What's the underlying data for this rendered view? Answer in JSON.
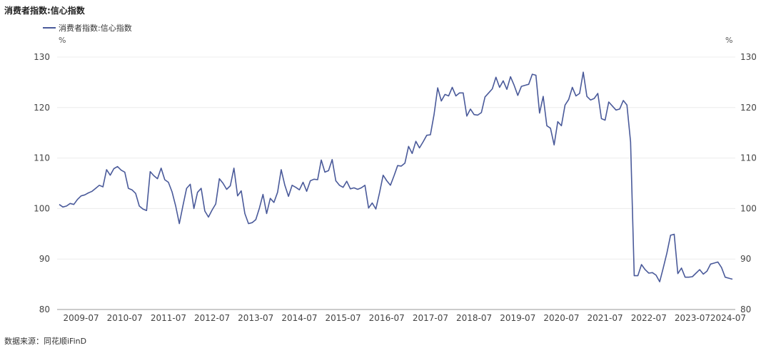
{
  "title": "消费者指数:信心指数",
  "source": "数据来源：同花顺iFinD",
  "chart_data": {
    "type": "line",
    "title": "消费者指数:信心指数",
    "ylabel_left": "%",
    "ylabel_right": "%",
    "ylim": [
      80,
      130
    ],
    "yticks": [
      80,
      90,
      100,
      110,
      120,
      130
    ],
    "xticks": [
      "2009-07",
      "2010-07",
      "2011-07",
      "2012-07",
      "2013-07",
      "2014-07",
      "2015-07",
      "2016-07",
      "2017-07",
      "2018-07",
      "2019-07",
      "2020-07",
      "2021-07",
      "2022-07",
      "2023-07",
      "2024-07"
    ],
    "legend_position": "top-left",
    "color": "#4a5a9a",
    "series": [
      {
        "name": "消费者指数:信心指数",
        "start": "2009-01",
        "values": [
          100.8,
          100.3,
          100.5,
          101.0,
          100.8,
          101.8,
          102.5,
          102.7,
          103.1,
          103.4,
          104.0,
          104.6,
          104.3,
          107.7,
          106.6,
          107.9,
          108.3,
          107.6,
          107.2,
          104.0,
          103.7,
          103.0,
          100.5,
          99.9,
          99.6,
          107.3,
          106.5,
          105.9,
          108.0,
          105.7,
          105.2,
          103.3,
          100.5,
          97.0,
          100.6,
          104.0,
          104.8,
          100.0,
          103.2,
          104.0,
          99.5,
          98.3,
          99.7,
          100.9,
          105.9,
          105.0,
          103.8,
          104.5,
          108.0,
          102.5,
          103.5,
          99.0,
          97.0,
          97.2,
          97.8,
          100.1,
          102.8,
          99.0,
          102.0,
          101.2,
          103.2,
          107.7,
          104.6,
          102.4,
          104.6,
          104.2,
          103.7,
          105.2,
          103.4,
          105.5,
          105.8,
          105.7,
          109.6,
          107.2,
          107.5,
          109.7,
          105.5,
          104.6,
          104.2,
          105.4,
          103.9,
          104.1,
          103.8,
          104.1,
          104.6,
          100.1,
          101.1,
          99.9,
          103.1,
          106.6,
          105.5,
          104.6,
          106.5,
          108.5,
          108.4,
          109.0,
          112.3,
          110.9,
          113.3,
          112.0,
          113.2,
          114.5,
          114.6,
          118.6,
          123.9,
          121.3,
          122.6,
          122.3,
          124.0,
          122.3,
          122.9,
          122.9,
          118.3,
          119.7,
          118.6,
          118.5,
          119.0,
          122.1,
          122.9,
          123.7,
          126.0,
          124.0,
          125.3,
          123.6,
          126.1,
          124.4,
          122.4,
          124.2,
          124.4,
          124.6,
          126.6,
          126.4,
          118.9,
          122.2,
          116.4,
          115.9,
          112.6,
          117.2,
          116.4,
          120.5,
          121.6,
          124.0,
          122.3,
          122.8,
          127.0,
          122.2,
          121.5,
          121.8,
          122.8,
          117.8,
          117.5,
          121.1,
          120.3,
          119.5,
          119.7,
          121.4,
          120.5,
          113.2,
          86.7,
          86.7,
          88.9,
          87.9,
          87.2,
          87.3,
          86.8,
          85.5,
          88.3,
          91.2,
          94.7,
          94.9,
          87.1,
          88.2,
          86.4,
          86.4,
          86.5,
          87.2,
          87.9,
          87.0,
          87.6,
          89.0,
          89.2,
          89.4,
          88.3,
          86.4,
          86.2,
          86.0
        ]
      }
    ]
  }
}
